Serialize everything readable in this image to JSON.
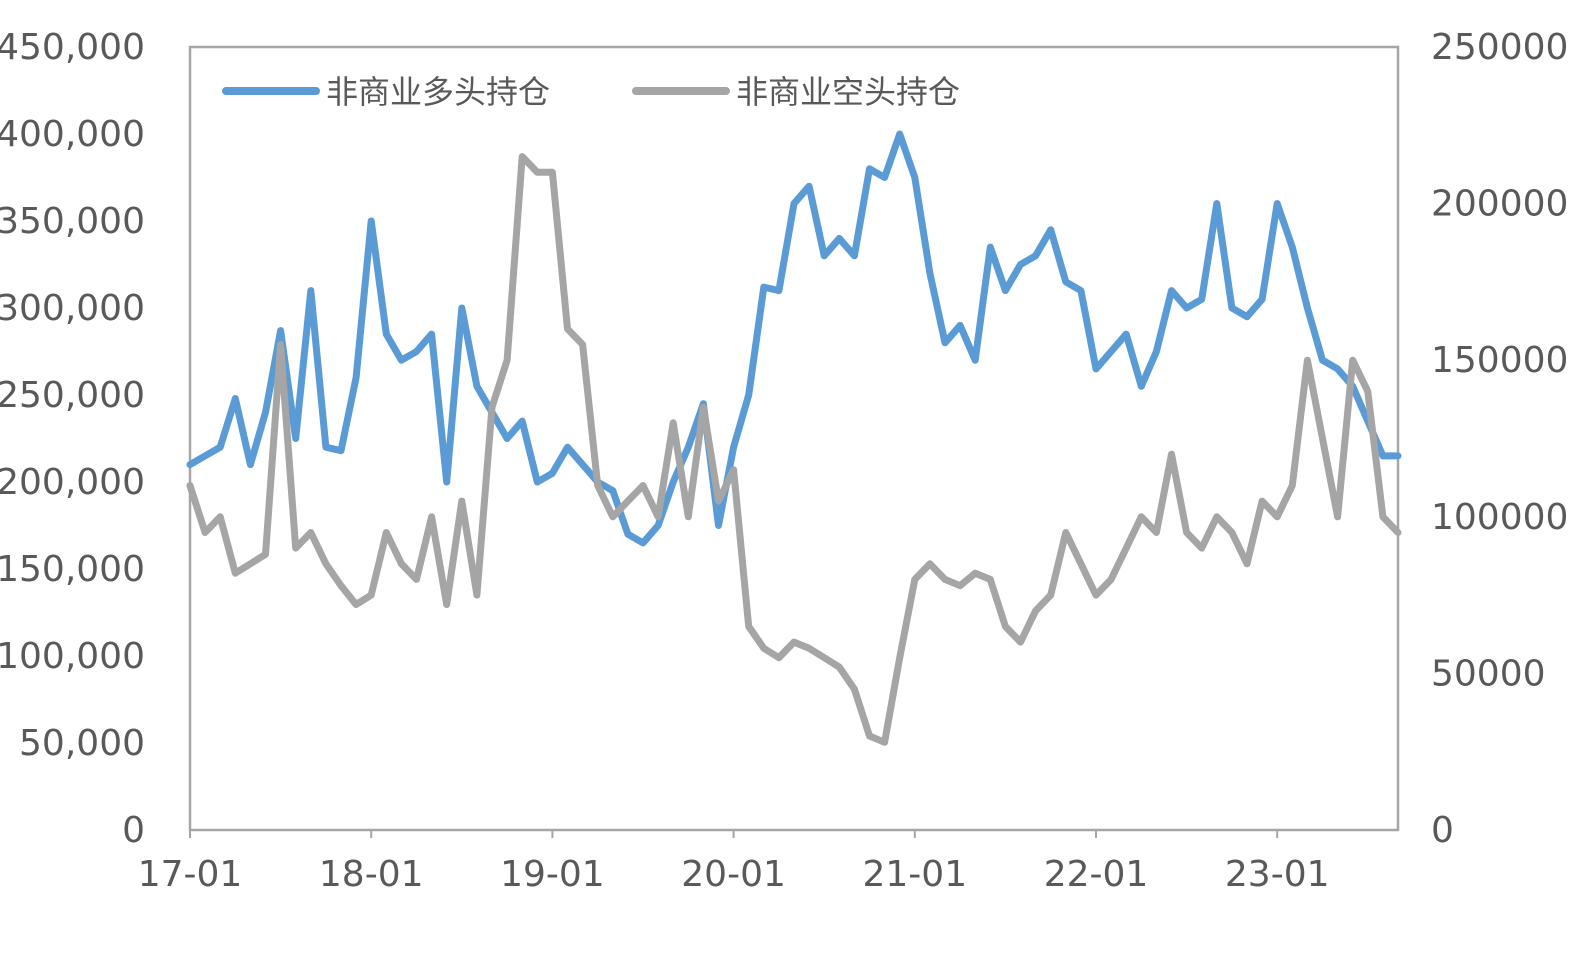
{
  "chart_data": {
    "type": "line",
    "title": "",
    "x_ticks": [
      "17-01",
      "18-01",
      "19-01",
      "20-01",
      "21-01",
      "22-01",
      "23-01"
    ],
    "x_range": [
      "2017-01-01",
      "2023-09-01"
    ],
    "y_left": {
      "ylim": [
        0,
        450000
      ],
      "ticks": [
        "0",
        "50,000",
        "100,000",
        "150,000",
        "200,000",
        "250,000",
        "300,000",
        "350,000",
        "400,000",
        "450,000"
      ]
    },
    "y_right": {
      "ylim": [
        0,
        250000
      ],
      "ticks": [
        "0",
        "50000",
        "100000",
        "150000",
        "200000",
        "250000"
      ]
    },
    "grid": false,
    "legend_position": "top-left",
    "series": [
      {
        "name": "非商业多头持仓",
        "axis": "left",
        "color": "#5B9BD5",
        "x": [
          "2017-01",
          "2017-02",
          "2017-03",
          "2017-04",
          "2017-05",
          "2017-06",
          "2017-07",
          "2017-08",
          "2017-09",
          "2017-10",
          "2017-11",
          "2017-12",
          "2018-01",
          "2018-02",
          "2018-03",
          "2018-04",
          "2018-05",
          "2018-06",
          "2018-07",
          "2018-08",
          "2018-09",
          "2018-10",
          "2018-11",
          "2018-12",
          "2019-01",
          "2019-02",
          "2019-03",
          "2019-04",
          "2019-05",
          "2019-06",
          "2019-07",
          "2019-08",
          "2019-09",
          "2019-10",
          "2019-11",
          "2019-12",
          "2020-01",
          "2020-02",
          "2020-03",
          "2020-04",
          "2020-05",
          "2020-06",
          "2020-07",
          "2020-08",
          "2020-09",
          "2020-10",
          "2020-11",
          "2020-12",
          "2021-01",
          "2021-02",
          "2021-03",
          "2021-04",
          "2021-05",
          "2021-06",
          "2021-07",
          "2021-08",
          "2021-09",
          "2021-10",
          "2021-11",
          "2021-12",
          "2022-01",
          "2022-02",
          "2022-03",
          "2022-04",
          "2022-05",
          "2022-06",
          "2022-07",
          "2022-08",
          "2022-09",
          "2022-10",
          "2022-11",
          "2022-12",
          "2023-01",
          "2023-02",
          "2023-03",
          "2023-04",
          "2023-05",
          "2023-06",
          "2023-07",
          "2023-08",
          "2023-09"
        ],
        "values": [
          210000,
          215000,
          220000,
          248000,
          210000,
          240000,
          287000,
          225000,
          310000,
          220000,
          218000,
          260000,
          350000,
          285000,
          270000,
          275000,
          285000,
          200000,
          300000,
          255000,
          240000,
          225000,
          235000,
          200000,
          205000,
          220000,
          210000,
          200000,
          195000,
          170000,
          165000,
          175000,
          200000,
          220000,
          245000,
          175000,
          220000,
          250000,
          312000,
          310000,
          360000,
          370000,
          330000,
          340000,
          330000,
          380000,
          375000,
          400000,
          375000,
          320000,
          280000,
          290000,
          270000,
          335000,
          310000,
          325000,
          330000,
          345000,
          315000,
          310000,
          265000,
          275000,
          285000,
          255000,
          275000,
          310000,
          300000,
          305000,
          360000,
          300000,
          295000,
          305000,
          360000,
          335000,
          300000,
          270000,
          265000,
          255000,
          235000,
          215000,
          215000
        ]
      },
      {
        "name": "非商业空头持仓",
        "axis": "right",
        "color": "#A5A5A5",
        "x": [
          "2017-01",
          "2017-02",
          "2017-03",
          "2017-04",
          "2017-05",
          "2017-06",
          "2017-07",
          "2017-08",
          "2017-09",
          "2017-10",
          "2017-11",
          "2017-12",
          "2018-01",
          "2018-02",
          "2018-03",
          "2018-04",
          "2018-05",
          "2018-06",
          "2018-07",
          "2018-08",
          "2018-09",
          "2018-10",
          "2018-11",
          "2018-12",
          "2019-01",
          "2019-02",
          "2019-03",
          "2019-04",
          "2019-05",
          "2019-06",
          "2019-07",
          "2019-08",
          "2019-09",
          "2019-10",
          "2019-11",
          "2019-12",
          "2020-01",
          "2020-02",
          "2020-03",
          "2020-04",
          "2020-05",
          "2020-06",
          "2020-07",
          "2020-08",
          "2020-09",
          "2020-10",
          "2020-11",
          "2020-12",
          "2021-01",
          "2021-02",
          "2021-03",
          "2021-04",
          "2021-05",
          "2021-06",
          "2021-07",
          "2021-08",
          "2021-09",
          "2021-10",
          "2021-11",
          "2021-12",
          "2022-01",
          "2022-02",
          "2022-03",
          "2022-04",
          "2022-05",
          "2022-06",
          "2022-07",
          "2022-08",
          "2022-09",
          "2022-10",
          "2022-11",
          "2022-12",
          "2023-01",
          "2023-02",
          "2023-03",
          "2023-04",
          "2023-05",
          "2023-06",
          "2023-07",
          "2023-08",
          "2023-09"
        ],
        "values": [
          110000,
          95000,
          100000,
          82000,
          85000,
          88000,
          155000,
          90000,
          95000,
          85000,
          78000,
          72000,
          75000,
          95000,
          85000,
          80000,
          100000,
          72000,
          105000,
          75000,
          135000,
          150000,
          215000,
          210000,
          210000,
          160000,
          155000,
          110000,
          100000,
          105000,
          110000,
          100000,
          130000,
          100000,
          135000,
          105000,
          115000,
          65000,
          58000,
          55000,
          60000,
          58000,
          55000,
          52000,
          45000,
          30000,
          28000,
          55000,
          80000,
          85000,
          80000,
          78000,
          82000,
          80000,
          65000,
          60000,
          70000,
          75000,
          95000,
          85000,
          75000,
          80000,
          90000,
          100000,
          95000,
          120000,
          95000,
          90000,
          100000,
          95000,
          85000,
          105000,
          100000,
          110000,
          150000,
          125000,
          100000,
          150000,
          140000,
          100000,
          95000
        ]
      }
    ]
  }
}
